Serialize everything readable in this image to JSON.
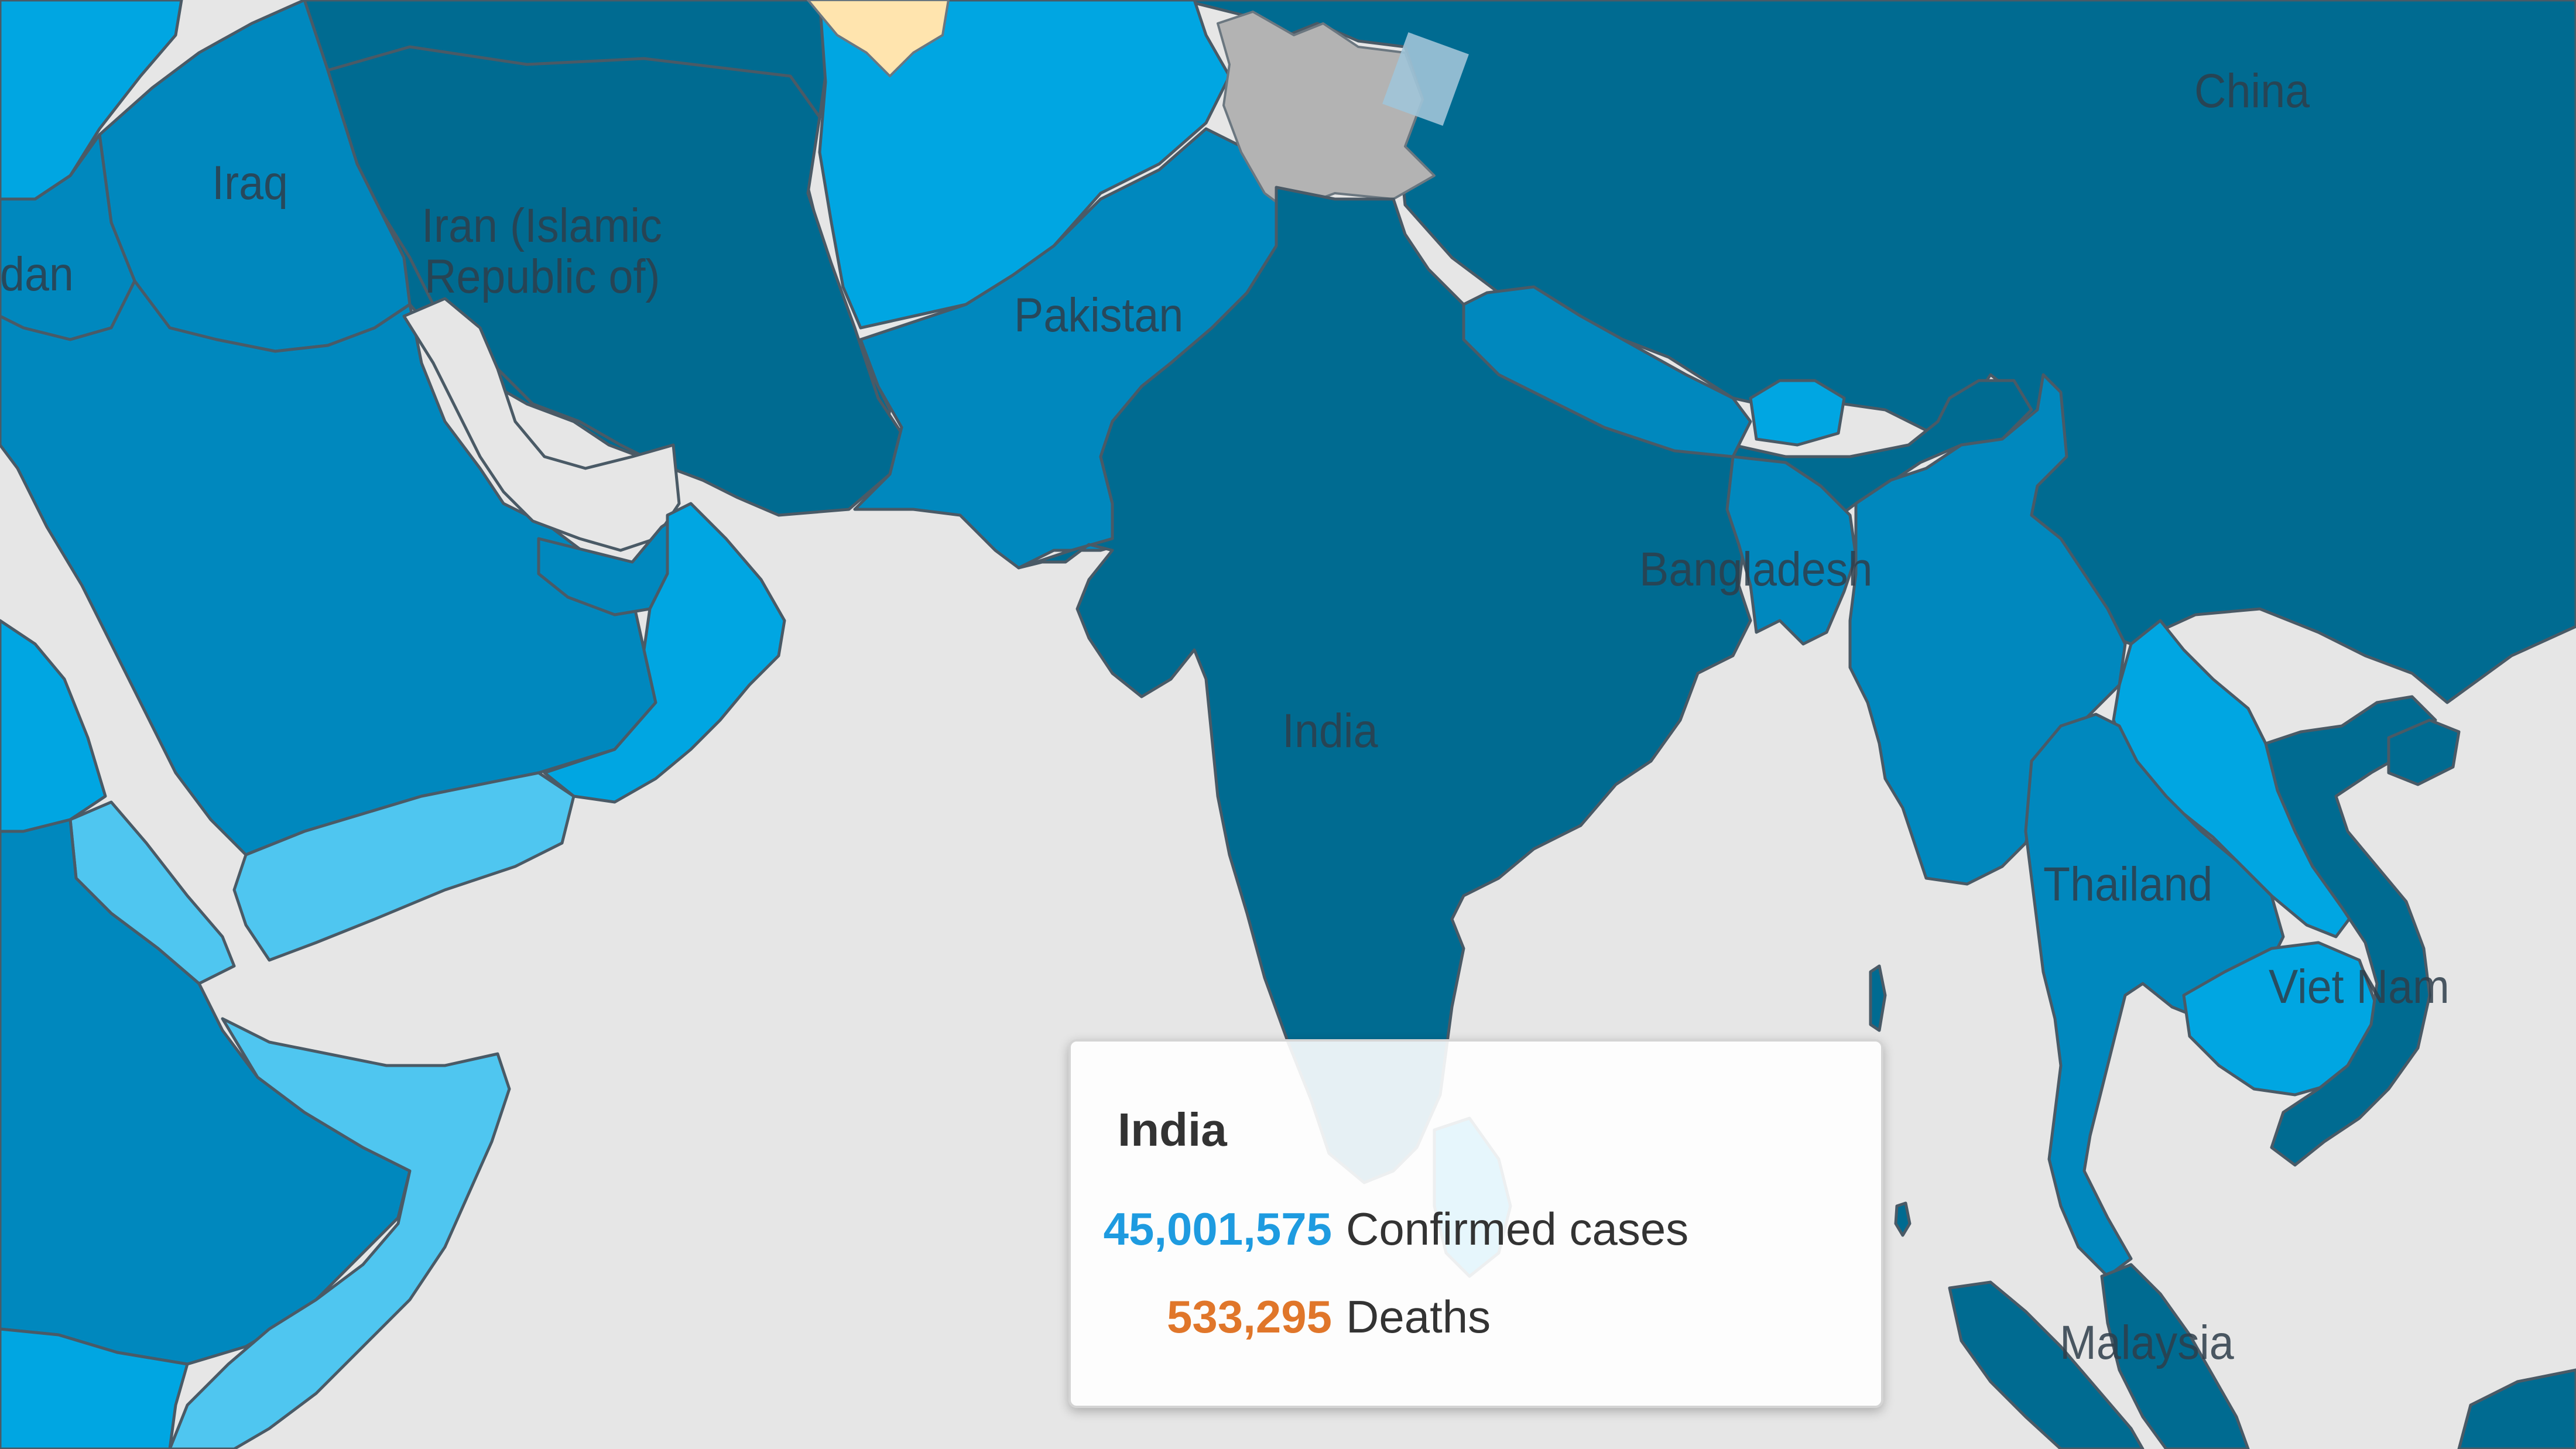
{
  "map": {
    "colors": {
      "ocean": "#e6e6e6",
      "darkest": "#006b91",
      "dark": "#0088be",
      "medium": "#00a6e2",
      "light": "#4fc6f0",
      "no_data": "#b3b3b3",
      "highlight": "#ffe4ae"
    },
    "labels": {
      "iraq": "Iraq",
      "iran": "Iran (Islamic Republic of)",
      "iran_line1": "Iran (Islamic",
      "iran_line2": "Republic of)",
      "sudan_partial": "dan",
      "pakistan": "Pakistan",
      "china": "China",
      "india": "India",
      "bangladesh": "Bangladesh",
      "thailand": "Thailand",
      "vietnam": "Viet Nam",
      "malaysia": "Malaysia"
    }
  },
  "tooltip": {
    "country": "India",
    "confirmed_value": "45,001,575",
    "confirmed_label": "Confirmed cases",
    "deaths_value": "533,295",
    "deaths_label": "Deaths",
    "confirmed_color": "#1e9be0",
    "deaths_color": "#e0762a"
  }
}
